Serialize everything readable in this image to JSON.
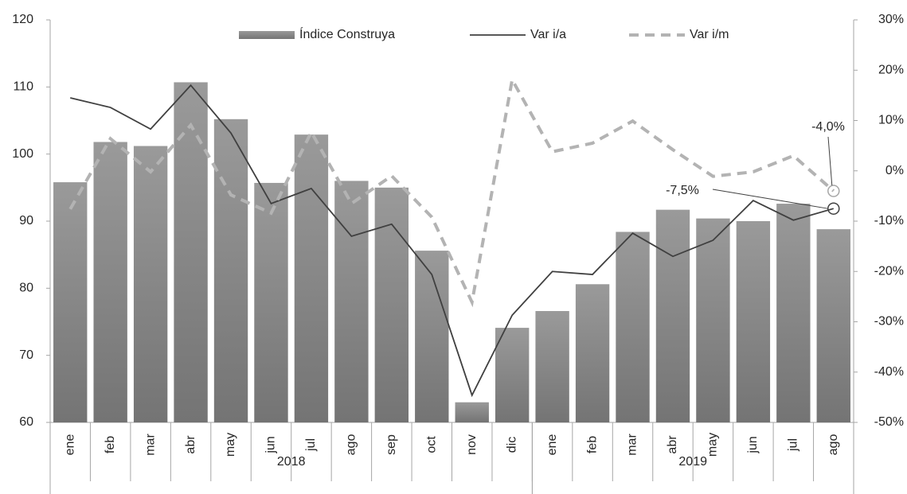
{
  "chart_data": {
    "type": "bar_line",
    "categories": [
      "ene",
      "feb",
      "mar",
      "abr",
      "may",
      "jun",
      "jul",
      "ago",
      "sep",
      "oct",
      "nov",
      "dic",
      "ene",
      "feb",
      "mar",
      "abr",
      "may",
      "jun",
      "jul",
      "ago"
    ],
    "groups": [
      {
        "label": "2018",
        "count": 12
      },
      {
        "label": "2019",
        "count": 8
      }
    ],
    "series": [
      {
        "name": "Índice Construya",
        "kind": "bar",
        "color": "#8c8c8c",
        "values": [
          95.8,
          101.8,
          101.2,
          110.7,
          105.2,
          95.7,
          102.9,
          96.0,
          95.0,
          85.6,
          63.0,
          74.1,
          76.6,
          80.6,
          88.4,
          91.7,
          90.4,
          90.0,
          92.6,
          88.8
        ]
      },
      {
        "name": "Var i/a",
        "kind": "line",
        "axis": "y2",
        "color": "#404040",
        "dashed": false,
        "values": [
          14.5,
          12.6,
          8.3,
          17.0,
          7.5,
          -6.5,
          -3.5,
          -13.0,
          -10.6,
          -20.6,
          -44.6,
          -28.7,
          -20.0,
          -20.6,
          -12.4,
          -17.0,
          -13.8,
          -5.9,
          -9.8,
          -7.5
        ],
        "value_labels": [
          null,
          null,
          null,
          null,
          null,
          null,
          null,
          null,
          null,
          null,
          null,
          null,
          null,
          null,
          null,
          null,
          null,
          null,
          null,
          "-7,5%"
        ]
      },
      {
        "name": "Var i/m",
        "kind": "line",
        "axis": "y2",
        "color": "#b3b3b3",
        "dashed": true,
        "values": [
          -7.6,
          6.4,
          -0.2,
          9.1,
          -4.8,
          -8.4,
          7.7,
          -6.5,
          -1.0,
          -9.2,
          -26.1,
          18.1,
          3.8,
          5.5,
          9.9,
          4.2,
          -1.1,
          -0.2,
          3.0,
          -4.0
        ],
        "value_labels": [
          null,
          null,
          null,
          null,
          null,
          null,
          null,
          null,
          null,
          null,
          null,
          null,
          null,
          null,
          null,
          null,
          null,
          null,
          null,
          "-4,0%"
        ]
      }
    ],
    "ylim": [
      60,
      120
    ],
    "yticks": [
      60,
      70,
      80,
      90,
      100,
      110,
      120
    ],
    "y2lim": [
      -50,
      30
    ],
    "y2ticks": [
      {
        "value": -50,
        "label": "-50%"
      },
      {
        "value": -40,
        "label": "-40%"
      },
      {
        "value": -30,
        "label": "-30%"
      },
      {
        "value": -20,
        "label": "-20%"
      },
      {
        "value": -10,
        "label": "-10%"
      },
      {
        "value": 0,
        "label": "0%"
      },
      {
        "value": 10,
        "label": "10%"
      },
      {
        "value": 20,
        "label": "20%"
      },
      {
        "value": 30,
        "label": "30%"
      }
    ],
    "legend": "top"
  }
}
